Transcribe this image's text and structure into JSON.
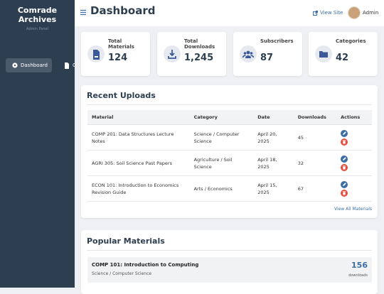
{
  "sidebar": {
    "title": "Comrade Archives",
    "subtitle": "Admin Panel",
    "nav": [
      "Dashboard",
      "C"
    ]
  },
  "header": {
    "title": "Dashboard",
    "view_site": "View Site",
    "user": "Admin"
  },
  "stats": [
    {
      "label": "Total Materials",
      "value": 124
    },
    {
      "label": "Total Downloads",
      "value": "1,245"
    },
    {
      "label": "Subscribers",
      "value": 87
    },
    {
      "label": "Categories",
      "value": 42
    }
  ],
  "recent_uploads": {
    "title": "Recent Uploads",
    "columns": [
      "Material",
      "Category",
      "Date",
      "Downloads",
      "Actions"
    ],
    "rows": [
      [
        "COMP 201: Data Structures Lecture Notes",
        "Science / Computer Science",
        "April 20, 2025",
        45
      ],
      [
        "AGRI 305: Soil Science Past Papers",
        "Agriculture / Soil Science",
        "April 18, 2025",
        32
      ],
      [
        "ECON 101: Introduction to Economics Revision Guide",
        "Arts / Economics",
        "April 15, 2025",
        67
      ]
    ],
    "view_all": "View All Materials"
  },
  "popular": {
    "title": "Popular Materials",
    "items": [
      {
        "title": "COMP 101: Introduction to Computing",
        "category": "Science / Computer Science",
        "downloads": 156,
        "unit": "downloads"
      }
    ]
  }
}
